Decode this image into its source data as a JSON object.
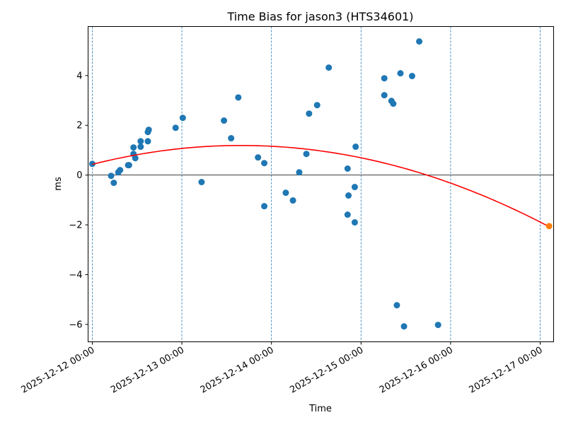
{
  "chart_data": {
    "type": "scatter",
    "title": "Time Bias for jason3 (HTS34601)",
    "xlabel": "Time",
    "ylabel": "ms",
    "x_unit": "days since 2025-12-12 00:00",
    "xlim": [
      -0.047,
      5.15
    ],
    "ylim": [
      -6.7,
      5.97
    ],
    "x_ticks": [
      {
        "value": 0,
        "label": "2025-12-12 00:00"
      },
      {
        "value": 1,
        "label": "2025-12-13 00:00"
      },
      {
        "value": 2,
        "label": "2025-12-14 00:00"
      },
      {
        "value": 3,
        "label": "2025-12-15 00:00"
      },
      {
        "value": 4,
        "label": "2025-12-16 00:00"
      },
      {
        "value": 5,
        "label": "2025-12-17 00:00"
      }
    ],
    "y_ticks": [
      {
        "value": -6,
        "label": "−6"
      },
      {
        "value": -4,
        "label": "−4"
      },
      {
        "value": -2,
        "label": "−2"
      },
      {
        "value": 0,
        "label": "0"
      },
      {
        "value": 2,
        "label": "2"
      },
      {
        "value": 4,
        "label": "4"
      }
    ],
    "grid": "vertical dashed at x ticks",
    "colors": {
      "points": "#1f77b4",
      "fit": "#ff0000",
      "prediction": "#ff7f0e",
      "grid": "#1f77b4",
      "zero_line": "#000000"
    },
    "series": [
      {
        "name": "measurements",
        "type": "scatter",
        "points": [
          [
            0.0,
            0.45
          ],
          [
            0.21,
            -0.03
          ],
          [
            0.24,
            -0.31
          ],
          [
            0.29,
            0.11
          ],
          [
            0.31,
            0.2
          ],
          [
            0.4,
            0.4
          ],
          [
            0.41,
            0.4
          ],
          [
            0.46,
            1.11
          ],
          [
            0.46,
            0.85
          ],
          [
            0.48,
            0.68
          ],
          [
            0.54,
            1.14
          ],
          [
            0.54,
            1.36
          ],
          [
            0.62,
            1.36
          ],
          [
            0.62,
            1.73
          ],
          [
            0.63,
            1.82
          ],
          [
            0.93,
            1.9
          ],
          [
            1.01,
            2.3
          ],
          [
            1.22,
            -0.28
          ],
          [
            1.47,
            2.19
          ],
          [
            1.55,
            1.48
          ],
          [
            1.63,
            3.12
          ],
          [
            1.85,
            0.71
          ],
          [
            1.92,
            0.48
          ],
          [
            1.92,
            -1.25
          ],
          [
            2.16,
            -0.71
          ],
          [
            2.24,
            -1.02
          ],
          [
            2.31,
            0.11
          ],
          [
            2.39,
            0.85
          ],
          [
            2.42,
            2.47
          ],
          [
            2.51,
            2.81
          ],
          [
            2.64,
            4.32
          ],
          [
            2.85,
            0.26
          ],
          [
            2.86,
            -0.82
          ],
          [
            2.85,
            -1.59
          ],
          [
            2.93,
            -0.48
          ],
          [
            2.93,
            -1.9
          ],
          [
            2.94,
            1.14
          ],
          [
            3.26,
            3.89
          ],
          [
            3.26,
            3.21
          ],
          [
            3.34,
            2.98
          ],
          [
            3.36,
            2.87
          ],
          [
            3.4,
            -5.23
          ],
          [
            3.44,
            4.09
          ],
          [
            3.48,
            -6.08
          ],
          [
            3.57,
            3.98
          ],
          [
            3.65,
            5.37
          ],
          [
            3.86,
            -6.02
          ]
        ]
      },
      {
        "name": "quadratic fit",
        "type": "line",
        "coefficients": {
          "a": -0.276,
          "vertex_x": 1.66,
          "vertex_y": 1.19
        },
        "x_range": [
          0,
          5.1
        ]
      },
      {
        "name": "prediction",
        "type": "scatter",
        "points": [
          [
            5.1,
            -2.05
          ]
        ]
      }
    ]
  }
}
